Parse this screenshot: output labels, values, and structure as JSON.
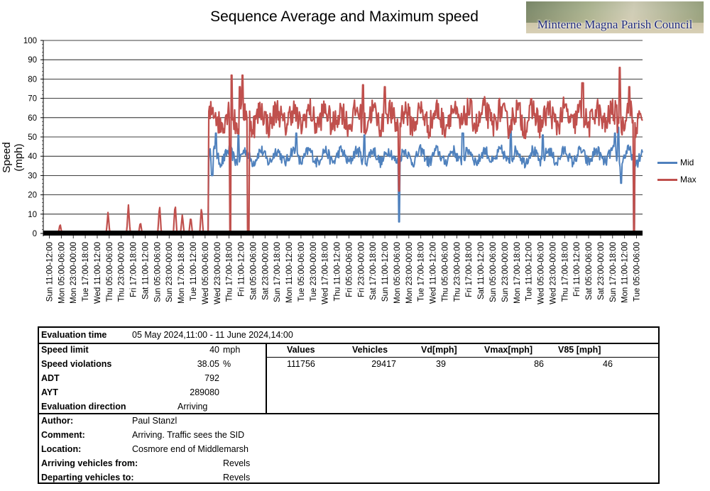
{
  "header": {
    "title": "Sequence Average and Maximum speed",
    "logo_text": "Minterne Magna Parish Council"
  },
  "chart_data": {
    "type": "line",
    "title": "Sequence Average and Maximum speed",
    "ylabel": "Speed (mph)",
    "xlabel": "",
    "ylim": [
      0,
      100
    ],
    "yticks": [
      0,
      10,
      20,
      30,
      40,
      50,
      60,
      70,
      80,
      90,
      100
    ],
    "grid": true,
    "legend": "right",
    "x_tick_labels": [
      "Sun 11:00-12:00",
      "Mon 05:00-06:00",
      "Mon 23:00-00:00",
      "Tue 17:00-18:00",
      "Wed 11:00-12:00",
      "Thu 05:00-06:00",
      "Thu 23:00-00:00",
      "Fri 17:00-18:00",
      "Sat 11:00-12:00",
      "Sun 05:00-06:00",
      "Sun 23:00-00:00",
      "Mon 17:00-18:00",
      "Tue 11:00-12:00",
      "Wed 05:00-06:00",
      "Wed 23:00-00:00",
      "Thu 17:00-18:00",
      "Fri 11:00-12:00",
      "Sat 05:00-06:00",
      "Sat 23:00-00:00",
      "Sun 17:00-18:00",
      "Mon 11:00-12:00",
      "Tue 05:00-06:00",
      "Tue 23:00-00:00",
      "Wed 17:00-18:00",
      "Thu 11:00-12:00",
      "Fri 05:00-06:00",
      "Fri 23:00-00:00",
      "Sat 17:00-18:00",
      "Sun 11:00-12:00",
      "Mon 05:00-06:00",
      "Mon 23:00-00:00",
      "Tue 17:00-18:00",
      "Wed 11:00-12:00",
      "Thu 05:00-06:00",
      "Thu 23:00-00:00",
      "Fri 17:00-18:00",
      "Sat 11:00-12:00",
      "Sun 05:00-06:00",
      "Sun 23:00-00:00",
      "Mon 17:00-18:00",
      "Tue 11:00-12:00",
      "Wed 05:00-06:00",
      "Wed 23:00-00:00",
      "Thu 17:00-18:00",
      "Fri 11:00-12:00",
      "Sat 05:00-06:00",
      "Sat 23:00-00:00",
      "Sun 17:00-18:00",
      "Mon 11:00-12:00",
      "Tue 05:00-06:00"
    ],
    "x_interval_hours": 18,
    "series": [
      {
        "name": "Mid",
        "color": "#4f81bd",
        "baseline": 40,
        "active_from_tick": 13.3,
        "dips": [
          [
            13.6,
            30
          ],
          [
            29.2,
            6
          ],
          [
            47.7,
            26
          ],
          [
            48.8,
            0
          ]
        ],
        "peaks": [
          [
            13.9,
            52
          ],
          [
            15.8,
            51
          ],
          [
            20.6,
            52
          ],
          [
            26.3,
            51
          ],
          [
            34.5,
            52
          ],
          [
            38.5,
            54
          ],
          [
            41.2,
            51
          ],
          [
            47.2,
            52
          ],
          [
            47.5,
            55
          ]
        ]
      },
      {
        "name": "Max",
        "color": "#c0504d",
        "baseline": 60,
        "active_from_tick": 13.3,
        "pre_activity": [
          [
            0.9,
            5
          ],
          [
            4.9,
            11
          ],
          [
            6.6,
            15
          ],
          [
            7.6,
            6
          ],
          [
            9.2,
            15
          ],
          [
            10.5,
            16
          ],
          [
            11.1,
            10
          ],
          [
            11.8,
            9
          ],
          [
            12.7,
            14
          ]
        ],
        "dips": [
          [
            15.1,
            0
          ],
          [
            16.6,
            0
          ],
          [
            29.2,
            22
          ],
          [
            48.8,
            0
          ]
        ],
        "peaks": [
          [
            15.2,
            82
          ],
          [
            16.1,
            82
          ],
          [
            15.9,
            76
          ],
          [
            26.2,
            77
          ],
          [
            28.0,
            76
          ],
          [
            47.6,
            86
          ],
          [
            48.4,
            76
          ],
          [
            44.5,
            78
          ]
        ]
      }
    ]
  },
  "stats": {
    "eval_time_label": "Evaluation time",
    "eval_time_value": "05 May 2024,11:00  -  11 June 2024,14:00",
    "speed_limit_label": "Speed limit",
    "speed_limit_value": "40",
    "speed_limit_unit": "mph",
    "speed_violations_label": "Speed violations",
    "speed_violations_value": "38.05",
    "speed_violations_unit": "%",
    "adt_label": "ADT",
    "adt_value": "792",
    "ayt_label": "AYT",
    "ayt_value": "289080",
    "direction_label": "Evaluation direction",
    "direction_value": "Arriving",
    "columns": [
      "Values",
      "Vehicles",
      "Vd[mph]",
      "Vmax[mph]",
      "V85 [mph]"
    ],
    "row": [
      "111756",
      "29417",
      "39",
      "86",
      "46"
    ],
    "author_label": "Author:",
    "author_value": "Paul Stanzl",
    "comment_label": "Comment:",
    "comment_value": "Arriving. Traffic sees the SID",
    "location_label": "Location:",
    "location_value": "Cosmore end of Middlemarsh",
    "arriving_label": "Arriving vehicles from:",
    "arriving_value": "Revels",
    "departing_label": "Departing vehicles to:",
    "departing_value": "Revels"
  }
}
